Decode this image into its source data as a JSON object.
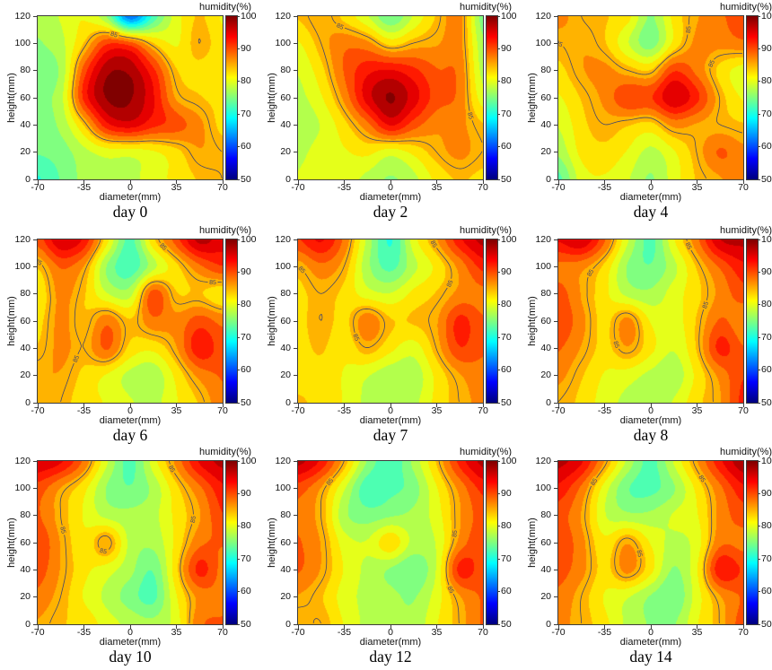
{
  "figure": {
    "colorbar": {
      "label": "humidity(%)",
      "ticks": [
        50,
        60,
        70,
        80,
        90,
        100
      ],
      "min": 50,
      "max": 100,
      "colormap": "jet"
    },
    "axes": {
      "xlabel": "diameter(mm)",
      "ylabel": "height(mm)",
      "x_ticks": [
        -70,
        -35,
        0,
        35,
        70
      ],
      "y_ticks": [
        0,
        20,
        40,
        60,
        80,
        100,
        120
      ],
      "x_range": [
        -70,
        70
      ],
      "y_range": [
        0,
        120
      ],
      "grid": false
    },
    "contour": {
      "level": 85,
      "label": "85",
      "line_color": "#41456e"
    },
    "colors": {
      "axis": "#3c3c3c",
      "background": "#ffffff"
    }
  },
  "chart_data": [
    {
      "type": "heatmap",
      "title": "day 0",
      "x": [
        -70,
        -52.5,
        -35,
        -17.5,
        0,
        17.5,
        35,
        52.5,
        70
      ],
      "y": [
        120,
        100,
        80,
        60,
        40,
        20,
        0
      ],
      "values": [
        [
          77,
          79,
          81,
          76,
          62,
          72,
          80,
          84,
          81
        ],
        [
          76,
          78,
          84,
          91,
          90,
          84,
          81,
          85,
          82
        ],
        [
          75,
          77,
          90,
          98,
          98,
          92,
          84,
          83,
          82
        ],
        [
          76,
          78,
          92,
          99,
          99,
          94,
          86,
          84,
          83
        ],
        [
          75,
          77,
          84,
          93,
          95,
          92,
          90,
          87,
          83
        ],
        [
          74,
          75,
          78,
          80,
          80,
          81,
          83,
          86,
          85
        ],
        [
          71,
          74,
          77,
          78,
          78,
          80,
          82,
          84,
          85
        ]
      ],
      "contour_labels": [
        {
          "x": -12,
          "y": 107
        }
      ]
    },
    {
      "type": "heatmap",
      "title": "day 2",
      "x": [
        -70,
        -52.5,
        -35,
        -17.5,
        0,
        17.5,
        35,
        52.5,
        70
      ],
      "y": [
        120,
        100,
        80,
        60,
        40,
        20,
        0
      ],
      "values": [
        [
          84,
          86,
          83,
          79,
          74,
          79,
          84,
          87,
          75
        ],
        [
          81,
          85,
          88,
          87,
          83,
          85,
          86,
          87,
          77
        ],
        [
          79,
          83,
          89,
          93,
          94,
          92,
          89,
          88,
          78
        ],
        [
          78,
          81,
          87,
          95,
          99,
          95,
          90,
          88,
          80
        ],
        [
          77,
          79,
          83,
          88,
          94,
          90,
          87,
          87,
          84
        ],
        [
          78,
          80,
          81,
          82,
          80,
          82,
          85,
          87,
          85
        ],
        [
          79,
          81,
          80,
          78,
          76,
          78,
          82,
          84,
          83
        ]
      ],
      "contour_labels": [
        {
          "x": -38,
          "y": 112
        },
        {
          "x": 57,
          "y": 46
        }
      ]
    },
    {
      "type": "heatmap",
      "title": "day 4",
      "x": [
        -70,
        -52.5,
        -35,
        -17.5,
        0,
        17.5,
        35,
        52.5,
        70
      ],
      "y": [
        120,
        100,
        80,
        60,
        40,
        20,
        0
      ],
      "values": [
        [
          87,
          85,
          84,
          82,
          76,
          82,
          86,
          88,
          91
        ],
        [
          85,
          86,
          84,
          79,
          75,
          82,
          87,
          87,
          88
        ],
        [
          83,
          86,
          87,
          85,
          84,
          91,
          88,
          83,
          80
        ],
        [
          81,
          84,
          87,
          91,
          91,
          96,
          92,
          85,
          81
        ],
        [
          79,
          83,
          85,
          84,
          83,
          87,
          86,
          85,
          84
        ],
        [
          77,
          82,
          83,
          81,
          78,
          81,
          85,
          89,
          87
        ],
        [
          73,
          80,
          81,
          79,
          76,
          80,
          84,
          86,
          88
        ]
      ],
      "contour_labels": [
        {
          "x": -68,
          "y": 108
        },
        {
          "x": 14,
          "y": 112
        },
        {
          "x": 53,
          "y": 82
        }
      ]
    },
    {
      "type": "heatmap",
      "title": "day 6",
      "x": [
        -70,
        -52.5,
        -35,
        -17.5,
        0,
        17.5,
        35,
        52.5,
        70
      ],
      "y": [
        120,
        100,
        80,
        60,
        40,
        20,
        0
      ],
      "values": [
        [
          90,
          96,
          93,
          82,
          73,
          83,
          90,
          97,
          95
        ],
        [
          84,
          89,
          86,
          76,
          72,
          78,
          83,
          88,
          91
        ],
        [
          82,
          87,
          84,
          79,
          78,
          90,
          84,
          84,
          82
        ],
        [
          83,
          87,
          84,
          88,
          84,
          88,
          87,
          90,
          88
        ],
        [
          84,
          87,
          85,
          89,
          83,
          82,
          86,
          93,
          90
        ],
        [
          86,
          86,
          83,
          81,
          78,
          77,
          82,
          87,
          89
        ],
        [
          86,
          85,
          82,
          81,
          79,
          78,
          81,
          84,
          88
        ]
      ],
      "contour_labels": [
        {
          "x": -66,
          "y": 112
        },
        {
          "x": 24,
          "y": 114
        },
        {
          "x": -44,
          "y": 34
        },
        {
          "x": 63,
          "y": 82
        }
      ]
    },
    {
      "type": "heatmap",
      "title": "day 7",
      "x": [
        -70,
        -52.5,
        -35,
        -17.5,
        0,
        17.5,
        35,
        52.5,
        70
      ],
      "y": [
        120,
        100,
        80,
        60,
        40,
        20,
        0
      ],
      "values": [
        [
          91,
          94,
          88,
          78,
          71,
          80,
          86,
          93,
          97
        ],
        [
          85,
          88,
          85,
          77,
          73,
          78,
          82,
          87,
          92
        ],
        [
          83,
          85,
          83,
          80,
          79,
          82,
          84,
          87,
          88
        ],
        [
          83,
          85,
          83,
          88,
          84,
          84,
          86,
          92,
          89
        ],
        [
          83,
          84,
          82,
          85,
          82,
          80,
          85,
          91,
          89
        ],
        [
          83,
          83,
          81,
          79,
          77,
          77,
          82,
          86,
          88
        ],
        [
          84,
          83,
          81,
          78,
          77,
          78,
          82,
          85,
          87
        ]
      ],
      "contour_labels": [
        {
          "x": -66,
          "y": 99
        },
        {
          "x": -44,
          "y": 40
        },
        {
          "x": 26,
          "y": 114
        },
        {
          "x": 63,
          "y": 80
        }
      ]
    },
    {
      "type": "heatmap",
      "title": "day 8",
      "x": [
        -70,
        -52.5,
        -35,
        -17.5,
        0,
        17.5,
        35,
        52.5,
        70
      ],
      "y": [
        120,
        100,
        80,
        60,
        40,
        20,
        0
      ],
      "values": [
        [
          94,
          96,
          89,
          79,
          73,
          81,
          88,
          96,
          97
        ],
        [
          88,
          87,
          83,
          76,
          74,
          78,
          84,
          89,
          93
        ],
        [
          90,
          86,
          82,
          78,
          77,
          80,
          83,
          87,
          90
        ],
        [
          91,
          87,
          83,
          87,
          81,
          80,
          84,
          89,
          87
        ],
        [
          89,
          86,
          83,
          86,
          82,
          79,
          84,
          92,
          89
        ],
        [
          87,
          84,
          81,
          80,
          78,
          77,
          82,
          87,
          91
        ],
        [
          85,
          83,
          80,
          78,
          77,
          79,
          83,
          86,
          92
        ]
      ],
      "contour_labels": [
        {
          "x": -46,
          "y": 95
        },
        {
          "x": 23,
          "y": 113
        },
        {
          "x": -20,
          "y": 45
        },
        {
          "x": 68,
          "y": 62
        }
      ]
    },
    {
      "type": "heatmap",
      "title": "day 10",
      "x": [
        -70,
        -52.5,
        -35,
        -17.5,
        0,
        17.5,
        35,
        52.5,
        70
      ],
      "y": [
        120,
        100,
        80,
        60,
        40,
        20,
        0
      ],
      "values": [
        [
          96,
          94,
          88,
          79,
          73,
          80,
          87,
          94,
          97
        ],
        [
          90,
          86,
          82,
          76,
          74,
          77,
          83,
          88,
          93
        ],
        [
          89,
          85,
          81,
          78,
          77,
          78,
          82,
          86,
          91
        ],
        [
          91,
          86,
          82,
          86,
          78,
          77,
          82,
          88,
          89
        ],
        [
          90,
          86,
          82,
          80,
          77,
          74,
          83,
          92,
          88
        ],
        [
          88,
          85,
          81,
          78,
          75,
          73,
          81,
          87,
          88
        ],
        [
          86,
          84,
          83,
          80,
          78,
          77,
          80,
          88,
          89
        ]
      ],
      "contour_labels": [
        {
          "x": -57,
          "y": 68
        },
        {
          "x": 26,
          "y": 112
        },
        {
          "x": -20,
          "y": 50
        },
        {
          "x": 67,
          "y": 73
        }
      ]
    },
    {
      "type": "heatmap",
      "title": "day 12",
      "x": [
        -70,
        -52.5,
        -35,
        -17.5,
        0,
        17.5,
        35,
        52.5,
        70
      ],
      "y": [
        120,
        100,
        80,
        60,
        40,
        20,
        0
      ],
      "values": [
        [
          97,
          93,
          85,
          76,
          72,
          77,
          84,
          92,
          97
        ],
        [
          90,
          86,
          79,
          72,
          73,
          75,
          81,
          87,
          92
        ],
        [
          88,
          85,
          77,
          75,
          76,
          77,
          80,
          86,
          90
        ],
        [
          89,
          86,
          80,
          79,
          83,
          78,
          79,
          87,
          91
        ],
        [
          89,
          86,
          81,
          78,
          76,
          74,
          79,
          92,
          90
        ],
        [
          86,
          84,
          80,
          78,
          77,
          76,
          80,
          86,
          89
        ],
        [
          84,
          85,
          81,
          78,
          77,
          77,
          81,
          85,
          89
        ]
      ],
      "contour_labels": [
        {
          "x": -40,
          "y": 100
        },
        {
          "x": 40,
          "y": 22
        },
        {
          "x": 68,
          "y": 65
        }
      ]
    },
    {
      "type": "heatmap",
      "title": "day 14",
      "x": [
        -70,
        -52.5,
        -35,
        -17.5,
        0,
        17.5,
        35,
        52.5,
        70
      ],
      "y": [
        120,
        100,
        80,
        60,
        40,
        20,
        0
      ],
      "values": [
        [
          97,
          94,
          86,
          78,
          73,
          79,
          86,
          93,
          98
        ],
        [
          93,
          88,
          80,
          74,
          73,
          76,
          82,
          88,
          93
        ],
        [
          90,
          86,
          79,
          77,
          77,
          79,
          81,
          87,
          90
        ],
        [
          91,
          87,
          82,
          86,
          81,
          78,
          80,
          88,
          88
        ],
        [
          90,
          87,
          83,
          87,
          82,
          76,
          81,
          93,
          91
        ],
        [
          88,
          85,
          81,
          79,
          76,
          74,
          80,
          86,
          89
        ],
        [
          87,
          85,
          82,
          78,
          76,
          76,
          81,
          85,
          90
        ]
      ],
      "contour_labels": [
        {
          "x": -38,
          "y": 101
        },
        {
          "x": 32,
          "y": 103
        },
        {
          "x": -16,
          "y": 50
        }
      ]
    }
  ]
}
